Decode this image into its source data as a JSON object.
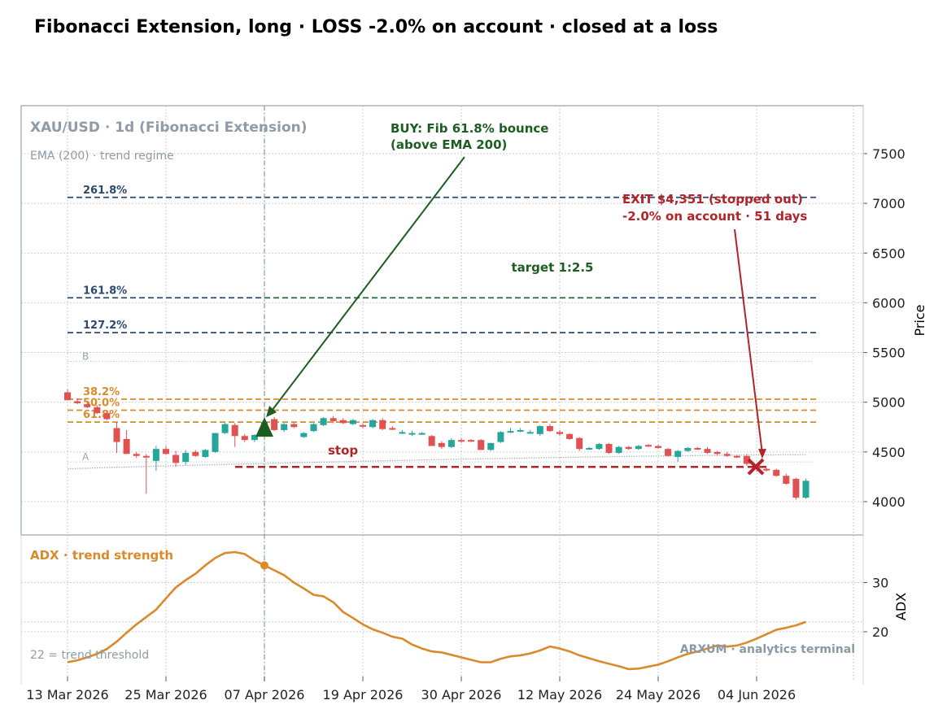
{
  "title": "Fibonacci Extension, long · LOSS -2.0% on account · closed at a loss",
  "watermark": "ARXUM · analytics terminal",
  "colors": {
    "up": "#26a69a",
    "down": "#e05252",
    "fib_ext": "#2c4a6e",
    "fib_retr": "#d98b2b",
    "stop": "#b2232a",
    "buy": "#1b5e20",
    "exit": "#b2232a",
    "adx": "#d98b2b",
    "muted": "#8a99a6"
  },
  "chart_data": [
    {
      "type": "candlestick",
      "symbol_label": "XAU/USD · 1d (Fibonacci Extension)",
      "ema_label": "EMA (200) · trend regime",
      "ylabel": "Price",
      "ylim": [
        3650,
        7950
      ],
      "yticks": [
        4000,
        4500,
        5000,
        5500,
        6000,
        6500,
        7000,
        7500
      ],
      "x_tick_labels": [
        "13 Mar 2026",
        "25 Mar 2026",
        "07 Apr 2026",
        "19 Apr 2026",
        "30 Apr 2026",
        "12 May 2026",
        "24 May 2026",
        "04 Jun 2026"
      ],
      "x_tick_index": [
        0,
        10,
        20,
        30,
        40,
        50,
        60,
        70
      ],
      "candles": [
        {
          "o": 5100,
          "h": 5130,
          "l": 5020,
          "c": 5020
        },
        {
          "o": 5010,
          "h": 5040,
          "l": 4980,
          "c": 4990
        },
        {
          "o": 4980,
          "h": 5000,
          "l": 4940,
          "c": 4950
        },
        {
          "o": 4950,
          "h": 4970,
          "l": 4880,
          "c": 4890
        },
        {
          "o": 4890,
          "h": 4900,
          "l": 4820,
          "c": 4830
        },
        {
          "o": 4740,
          "h": 4800,
          "l": 4490,
          "c": 4600
        },
        {
          "o": 4630,
          "h": 4720,
          "l": 4490,
          "c": 4480
        },
        {
          "o": 4480,
          "h": 4500,
          "l": 4440,
          "c": 4460
        },
        {
          "o": 4460,
          "h": 4480,
          "l": 4080,
          "c": 4450
        },
        {
          "o": 4410,
          "h": 4560,
          "l": 4310,
          "c": 4530
        },
        {
          "o": 4530,
          "h": 4560,
          "l": 4470,
          "c": 4480
        },
        {
          "o": 4470,
          "h": 4510,
          "l": 4350,
          "c": 4390
        },
        {
          "o": 4400,
          "h": 4520,
          "l": 4370,
          "c": 4490
        },
        {
          "o": 4500,
          "h": 4520,
          "l": 4450,
          "c": 4460
        },
        {
          "o": 4450,
          "h": 4530,
          "l": 4440,
          "c": 4520
        },
        {
          "o": 4500,
          "h": 4690,
          "l": 4490,
          "c": 4690
        },
        {
          "o": 4690,
          "h": 4800,
          "l": 4680,
          "c": 4780
        },
        {
          "o": 4770,
          "h": 4790,
          "l": 4550,
          "c": 4660
        },
        {
          "o": 4660,
          "h": 4680,
          "l": 4600,
          "c": 4620
        },
        {
          "o": 4620,
          "h": 4680,
          "l": 4600,
          "c": 4670
        },
        {
          "o": 4660,
          "h": 4820,
          "l": 4650,
          "c": 4800
        },
        {
          "o": 4830,
          "h": 4850,
          "l": 4710,
          "c": 4720
        },
        {
          "o": 4720,
          "h": 4790,
          "l": 4700,
          "c": 4780
        },
        {
          "o": 4780,
          "h": 4800,
          "l": 4740,
          "c": 4750
        },
        {
          "o": 4650,
          "h": 4700,
          "l": 4640,
          "c": 4690
        },
        {
          "o": 4710,
          "h": 4790,
          "l": 4700,
          "c": 4780
        },
        {
          "o": 4770,
          "h": 4850,
          "l": 4760,
          "c": 4840
        },
        {
          "o": 4840,
          "h": 4860,
          "l": 4790,
          "c": 4810
        },
        {
          "o": 4820,
          "h": 4840,
          "l": 4780,
          "c": 4790
        },
        {
          "o": 4780,
          "h": 4830,
          "l": 4770,
          "c": 4820
        },
        {
          "o": 4770,
          "h": 4790,
          "l": 4740,
          "c": 4760
        },
        {
          "o": 4750,
          "h": 4830,
          "l": 4740,
          "c": 4820
        },
        {
          "o": 4820,
          "h": 4840,
          "l": 4720,
          "c": 4730
        },
        {
          "o": 4740,
          "h": 4760,
          "l": 4720,
          "c": 4730
        },
        {
          "o": 4700,
          "h": 4720,
          "l": 4680,
          "c": 4700
        },
        {
          "o": 4690,
          "h": 4710,
          "l": 4660,
          "c": 4690
        },
        {
          "o": 4680,
          "h": 4700,
          "l": 4670,
          "c": 4690
        },
        {
          "o": 4660,
          "h": 4670,
          "l": 4560,
          "c": 4560
        },
        {
          "o": 4590,
          "h": 4610,
          "l": 4530,
          "c": 4550
        },
        {
          "o": 4550,
          "h": 4640,
          "l": 4540,
          "c": 4620
        },
        {
          "o": 4620,
          "h": 4640,
          "l": 4590,
          "c": 4610
        },
        {
          "o": 4620,
          "h": 4630,
          "l": 4600,
          "c": 4610
        },
        {
          "o": 4620,
          "h": 4630,
          "l": 4520,
          "c": 4520
        },
        {
          "o": 4520,
          "h": 4590,
          "l": 4510,
          "c": 4590
        },
        {
          "o": 4600,
          "h": 4710,
          "l": 4590,
          "c": 4700
        },
        {
          "o": 4700,
          "h": 4740,
          "l": 4690,
          "c": 4710
        },
        {
          "o": 4720,
          "h": 4740,
          "l": 4700,
          "c": 4720
        },
        {
          "o": 4700,
          "h": 4720,
          "l": 4690,
          "c": 4700
        },
        {
          "o": 4680,
          "h": 4770,
          "l": 4660,
          "c": 4760
        },
        {
          "o": 4760,
          "h": 4780,
          "l": 4700,
          "c": 4710
        },
        {
          "o": 4700,
          "h": 4720,
          "l": 4660,
          "c": 4680
        },
        {
          "o": 4680,
          "h": 4690,
          "l": 4620,
          "c": 4630
        },
        {
          "o": 4640,
          "h": 4650,
          "l": 4510,
          "c": 4530
        },
        {
          "o": 4530,
          "h": 4550,
          "l": 4520,
          "c": 4540
        },
        {
          "o": 4530,
          "h": 4590,
          "l": 4520,
          "c": 4580
        },
        {
          "o": 4580,
          "h": 4590,
          "l": 4480,
          "c": 4490
        },
        {
          "o": 4490,
          "h": 4560,
          "l": 4480,
          "c": 4550
        },
        {
          "o": 4550,
          "h": 4560,
          "l": 4520,
          "c": 4530
        },
        {
          "o": 4530,
          "h": 4570,
          "l": 4520,
          "c": 4560
        },
        {
          "o": 4570,
          "h": 4580,
          "l": 4550,
          "c": 4560
        },
        {
          "o": 4560,
          "h": 4570,
          "l": 4530,
          "c": 4540
        },
        {
          "o": 4530,
          "h": 4540,
          "l": 4450,
          "c": 4460
        },
        {
          "o": 4450,
          "h": 4520,
          "l": 4400,
          "c": 4510
        },
        {
          "o": 4510,
          "h": 4550,
          "l": 4500,
          "c": 4540
        },
        {
          "o": 4540,
          "h": 4550,
          "l": 4520,
          "c": 4530
        },
        {
          "o": 4530,
          "h": 4550,
          "l": 4480,
          "c": 4490
        },
        {
          "o": 4500,
          "h": 4510,
          "l": 4460,
          "c": 4480
        },
        {
          "o": 4480,
          "h": 4500,
          "l": 4450,
          "c": 4460
        },
        {
          "o": 4460,
          "h": 4470,
          "l": 4440,
          "c": 4450
        },
        {
          "o": 4460,
          "h": 4480,
          "l": 4360,
          "c": 4380
        },
        {
          "o": 4370,
          "h": 4380,
          "l": 4300,
          "c": 4330
        },
        {
          "o": 4330,
          "h": 4340,
          "l": 4300,
          "c": 4320
        },
        {
          "o": 4320,
          "h": 4330,
          "l": 4250,
          "c": 4260
        },
        {
          "o": 4260,
          "h": 4280,
          "l": 4170,
          "c": 4180
        },
        {
          "o": 4230,
          "h": 4240,
          "l": 4020,
          "c": 4040
        },
        {
          "o": 4040,
          "h": 4230,
          "l": 4030,
          "c": 4210
        }
      ],
      "ema200": [
        4330,
        4333,
        4336,
        4340,
        4343,
        4346,
        4349,
        4352,
        4354,
        4357,
        4359,
        4362,
        4364,
        4367,
        4369,
        4372,
        4374,
        4377,
        4379,
        4381,
        4384,
        4386,
        4388,
        4391,
        4393,
        4395,
        4398,
        4400,
        4402,
        4404,
        4407,
        4409,
        4411,
        4413,
        4415,
        4417,
        4419,
        4421,
        4423,
        4425,
        4427,
        4429,
        4431,
        4432,
        4434,
        4436,
        4438,
        4440,
        4441,
        4443,
        4445,
        4446,
        4448,
        4449,
        4451,
        4452,
        4454,
        4455,
        4457,
        4458,
        4459,
        4460,
        4462,
        4463,
        4464,
        4465,
        4466,
        4467,
        4468,
        4469,
        4470,
        4470,
        4471,
        4471,
        4472,
        4472
      ],
      "fib_levels": [
        {
          "label": "261.8%",
          "value": 7060,
          "kind": "ext"
        },
        {
          "label": "161.8%",
          "value": 6050,
          "kind": "ext"
        },
        {
          "label": "127.2%",
          "value": 5700,
          "kind": "ext"
        },
        {
          "label": "38.2%",
          "value": 5030,
          "kind": "retr"
        },
        {
          "label": "50.0%",
          "value": 4920,
          "kind": "retr"
        },
        {
          "label": "61.8%",
          "value": 4800,
          "kind": "retr"
        }
      ],
      "swing_points": [
        {
          "label": "B",
          "value": 5410
        },
        {
          "label": "A",
          "value": 4400
        }
      ],
      "stop": {
        "label": "stop",
        "value": 4350
      },
      "target": {
        "label": "target 1:2.5",
        "value": 6050
      },
      "entry": {
        "index": 20,
        "price": 4800,
        "label_line1": "BUY: Fib 61.8% bounce",
        "label_line2": "(above EMA 200)"
      },
      "exit": {
        "index": 70,
        "price": 4351,
        "label_line1": "EXIT $4,351 (stopped out)",
        "label_line2": "-2.0% on account  ·  51 days"
      }
    },
    {
      "type": "line",
      "series_label": "ADX · trend strength",
      "ylabel": "ADX",
      "ylim": [
        10,
        37
      ],
      "yticks": [
        20,
        30
      ],
      "threshold": {
        "label": "22 = trend threshold",
        "value": 22
      },
      "values": [
        13.8,
        14.2,
        14.8,
        15.5,
        16.5,
        18.0,
        19.8,
        21.5,
        23.0,
        24.5,
        26.8,
        29.0,
        30.5,
        31.8,
        33.5,
        35.0,
        36.0,
        36.2,
        35.8,
        34.5,
        33.5,
        32.5,
        31.5,
        30.0,
        28.8,
        27.5,
        27.2,
        26.0,
        24.0,
        22.8,
        21.5,
        20.5,
        19.8,
        19.0,
        18.6,
        17.4,
        16.6,
        16.0,
        15.8,
        15.3,
        14.8,
        14.3,
        13.8,
        13.8,
        14.5,
        15.0,
        15.2,
        15.6,
        16.2,
        17.0,
        16.6,
        16.0,
        15.2,
        14.6,
        14.0,
        13.5,
        13.0,
        12.4,
        12.5,
        12.9,
        13.3,
        14.0,
        14.8,
        15.5,
        16.0,
        16.6,
        17.2,
        17.0,
        17.2,
        17.8,
        18.6,
        19.5,
        20.4,
        20.8,
        21.3,
        22.0
      ]
    }
  ]
}
